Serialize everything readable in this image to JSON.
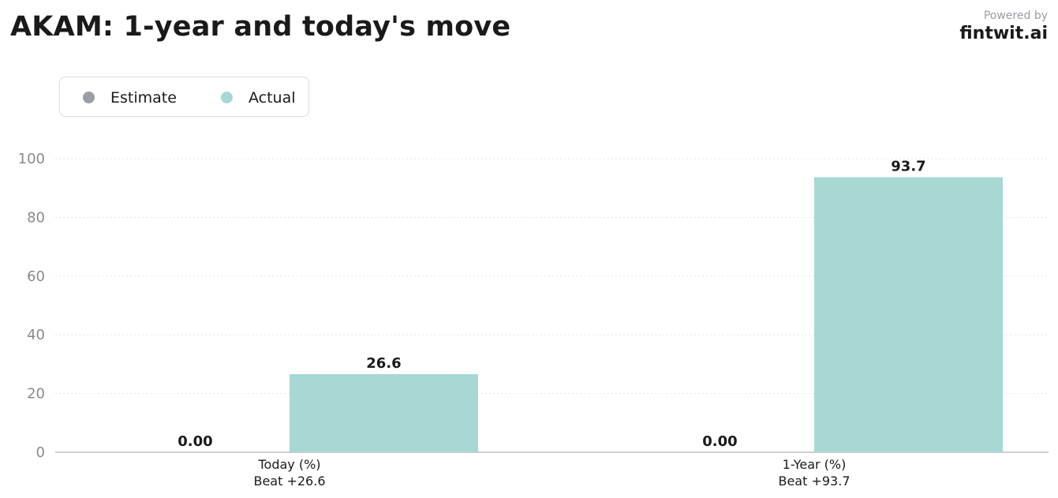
{
  "header": {
    "title": "AKAM: 1-year and today's move",
    "powered_by": "Powered by",
    "brand": "fintwit.ai"
  },
  "legend": {
    "items": [
      {
        "label": "Estimate",
        "color": "#9a9da3"
      },
      {
        "label": "Actual",
        "color": "#a8d8d4"
      }
    ]
  },
  "chart_data": {
    "type": "bar",
    "categories": [
      [
        "Today (%)",
        "Beat +26.6"
      ],
      [
        "1-Year (%)",
        "Beat +93.7"
      ]
    ],
    "series": [
      {
        "name": "Estimate",
        "values": [
          0,
          0
        ],
        "labels": [
          "0.00",
          "0.00"
        ],
        "color": "#9a9da3"
      },
      {
        "name": "Actual",
        "values": [
          26.6,
          93.7
        ],
        "labels": [
          "26.6",
          "93.7"
        ],
        "color": "#a8d8d4"
      }
    ],
    "ylim": [
      0,
      100
    ],
    "yticks": [
      0,
      20,
      40,
      60,
      80,
      100
    ],
    "grid": true,
    "legend_position": "top-left"
  }
}
